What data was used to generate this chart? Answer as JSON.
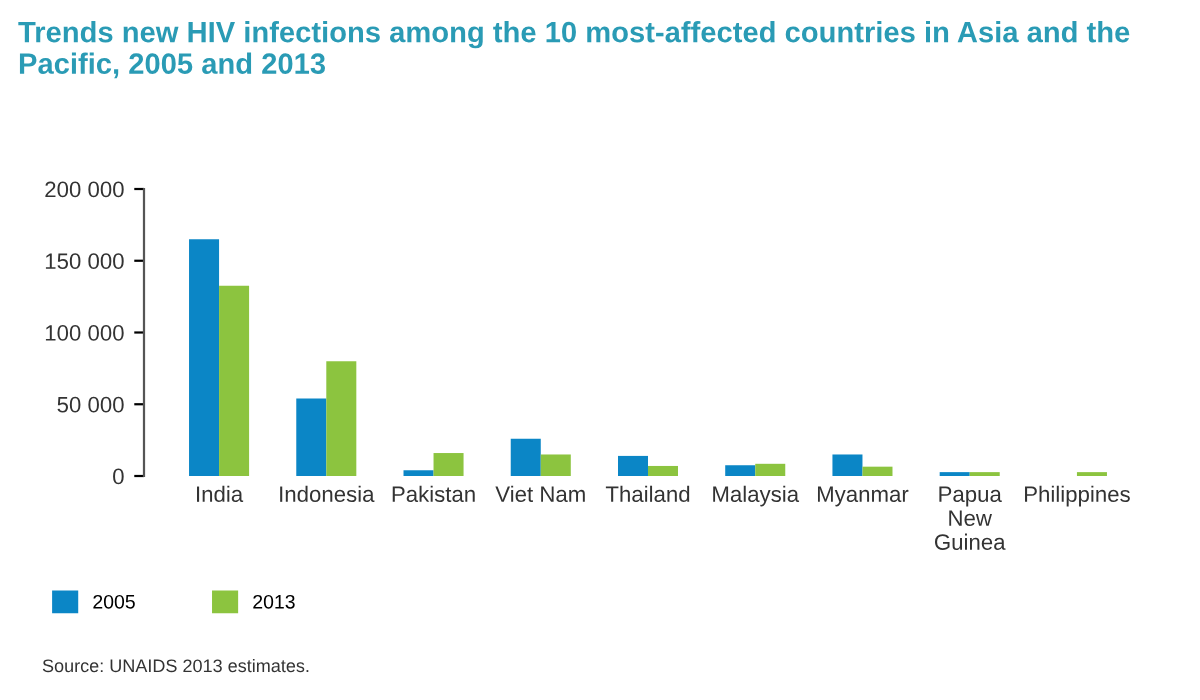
{
  "chart_data": {
    "type": "bar",
    "title": "Trends new HIV infections among the 10 most-affected countries in Asia and the Pacific, 2005 and 2013",
    "categories": [
      "India",
      "Indonesia",
      "Pakistan",
      "Viet Nam",
      "Thailand",
      "Malaysia",
      "Myanmar",
      "Papua\nNew\nGuinea",
      "Philippines"
    ],
    "series": [
      {
        "name": "2005",
        "color": "#0b86c6",
        "values": [
          165000,
          54000,
          4000,
          26000,
          14000,
          7500,
          15000,
          2700,
          null
        ]
      },
      {
        "name": "2013",
        "color": "#8cc43f",
        "values": [
          132500,
          80000,
          16000,
          15000,
          7000,
          8500,
          6500,
          2700,
          2700
        ]
      }
    ],
    "ylim": [
      0,
      200000
    ],
    "yticks": [
      {
        "value": 0,
        "label": "0"
      },
      {
        "value": 50000,
        "label": "50 000"
      },
      {
        "value": 100000,
        "label": "100 000"
      },
      {
        "value": 150000,
        "label": "150 000"
      },
      {
        "value": 200000,
        "label": "200 000"
      }
    ],
    "grid": false,
    "legend": "bottom left",
    "annotations": [
      "Source: UNAIDS 2013 estimates."
    ]
  }
}
